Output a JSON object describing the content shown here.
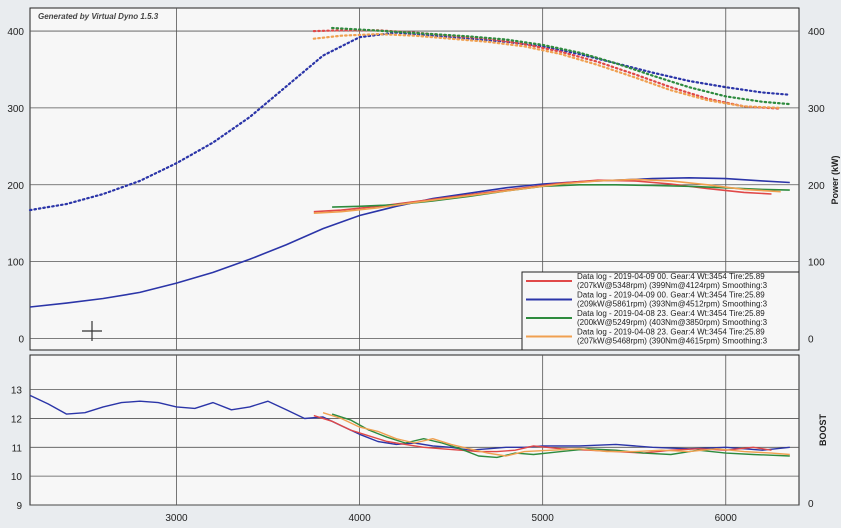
{
  "watermark": "Generated by Virtual Dyno 1.5.3",
  "colors": {
    "blue": "#2b35a8",
    "red": "#e04848",
    "green": "#2e8b3e",
    "orange": "#f0a050"
  },
  "chart_data": [
    {
      "type": "line",
      "xlim": [
        2200,
        6400
      ],
      "ylim": [
        -15,
        430
      ],
      "grid": true,
      "ylabel": "",
      "ylabel_right": "Power (kW)",
      "yticks_left": [
        "0",
        "100",
        "200",
        "300",
        "400"
      ],
      "yticks_right": [
        "0",
        "100",
        "200",
        "300",
        "400"
      ],
      "legend_position": "bottom-right",
      "legend": [
        {
          "line1": "Data log - 2019-04-09 00. Gear:4 Wt:3454 Tire:25.89",
          "line2": "(207kW@5348rpm) (399Nm@4124rpm) Smoothing:3",
          "color": "red"
        },
        {
          "line1": "Data log - 2019-04-09 00. Gear:4 Wt:3454 Tire:25.89",
          "line2": "(209kW@5861rpm) (393Nm@4512rpm) Smoothing:3",
          "color": "blue"
        },
        {
          "line1": "Data log - 2019-04-08 23. Gear:4 Wt:3454 Tire:25.89",
          "line2": "(200kW@5249rpm) (403Nm@3850rpm) Smoothing:3",
          "color": "green"
        },
        {
          "line1": "Data log - 2019-04-08 23. Gear:4 Wt:3454 Tire:25.89",
          "line2": "(207kW@5468rpm) (390Nm@4615rpm) Smoothing:3",
          "color": "orange"
        }
      ],
      "series": [
        {
          "color": "blue",
          "style": "solid",
          "x": [
            2200,
            2400,
            2600,
            2800,
            3000,
            3200,
            3400,
            3600,
            3800,
            4000,
            4200,
            4400,
            4600,
            4800,
            5000,
            5200,
            5400,
            5600,
            5800,
            6000,
            6200,
            6350
          ],
          "y": [
            41,
            46,
            52,
            60,
            72,
            86,
            103,
            122,
            143,
            160,
            172,
            182,
            189,
            196,
            201,
            204,
            206,
            208,
            209,
            208,
            205,
            203
          ]
        },
        {
          "color": "red",
          "style": "solid",
          "x": [
            3750,
            3900,
            4100,
            4300,
            4500,
            4700,
            4900,
            5100,
            5300,
            5500,
            5700,
            5900,
            6100,
            6250
          ],
          "y": [
            165,
            167,
            172,
            178,
            184,
            190,
            196,
            202,
            206,
            205,
            201,
            195,
            190,
            188
          ]
        },
        {
          "color": "green",
          "style": "solid",
          "x": [
            3850,
            4000,
            4200,
            4400,
            4600,
            4800,
            5000,
            5200,
            5400,
            5600,
            5800,
            6000,
            6200,
            6350
          ],
          "y": [
            171,
            172,
            174,
            179,
            185,
            192,
            198,
            200,
            200,
            199,
            198,
            196,
            194,
            193
          ]
        },
        {
          "color": "orange",
          "style": "solid",
          "x": [
            3750,
            3900,
            4100,
            4300,
            4500,
            4700,
            4900,
            5100,
            5300,
            5500,
            5700,
            5900,
            6100,
            6300
          ],
          "y": [
            163,
            165,
            170,
            177,
            183,
            189,
            195,
            201,
            205,
            207,
            205,
            200,
            194,
            191
          ]
        },
        {
          "color": "blue",
          "style": "dotted",
          "x": [
            2200,
            2400,
            2600,
            2800,
            3000,
            3200,
            3400,
            3600,
            3800,
            4000,
            4200,
            4400,
            4600,
            4800,
            5000,
            5200,
            5400,
            5600,
            5800,
            6000,
            6200,
            6350
          ],
          "y": [
            167,
            175,
            188,
            205,
            228,
            255,
            288,
            328,
            368,
            392,
            398,
            394,
            390,
            386,
            380,
            370,
            358,
            346,
            335,
            327,
            320,
            317
          ]
        },
        {
          "color": "red",
          "style": "dotted",
          "x": [
            3750,
            3900,
            4100,
            4300,
            4500,
            4700,
            4900,
            5100,
            5300,
            5500,
            5700,
            5900,
            6100,
            6300
          ],
          "y": [
            400,
            401,
            401,
            398,
            394,
            390,
            383,
            373,
            360,
            344,
            327,
            312,
            302,
            299
          ]
        },
        {
          "color": "green",
          "style": "dotted",
          "x": [
            3850,
            4000,
            4200,
            4400,
            4600,
            4800,
            5000,
            5200,
            5400,
            5600,
            5800,
            6000,
            6200,
            6350
          ],
          "y": [
            404,
            402,
            399,
            396,
            393,
            389,
            382,
            372,
            358,
            342,
            327,
            315,
            308,
            305
          ]
        },
        {
          "color": "orange",
          "style": "dotted",
          "x": [
            3750,
            3900,
            4100,
            4300,
            4500,
            4700,
            4900,
            5100,
            5300,
            5500,
            5700,
            5900,
            6100,
            6300
          ],
          "y": [
            390,
            394,
            396,
            394,
            390,
            386,
            380,
            370,
            356,
            340,
            323,
            310,
            302,
            300
          ]
        }
      ]
    },
    {
      "type": "line",
      "xlim": [
        2200,
        6400
      ],
      "ylim": [
        9,
        14.2
      ],
      "grid": true,
      "ylabel_left": "",
      "ylabel_right": "BOOST",
      "yticks_left": [
        "9",
        "10",
        "11",
        "12",
        "13"
      ],
      "yticks_right": [
        "0"
      ],
      "xticks": [
        "3000",
        "4000",
        "5000",
        "6000"
      ],
      "series": [
        {
          "color": "blue",
          "style": "solid",
          "x": [
            2200,
            2300,
            2400,
            2500,
            2600,
            2700,
            2800,
            2900,
            3000,
            3100,
            3200,
            3300,
            3400,
            3500,
            3600,
            3700,
            3800,
            3900,
            4000,
            4100,
            4200,
            4300,
            4400,
            4500,
            4600,
            4700,
            4800,
            4900,
            5000,
            5200,
            5400,
            5600,
            5800,
            6000,
            6200,
            6350
          ],
          "y": [
            12.8,
            12.5,
            12.15,
            12.2,
            12.4,
            12.55,
            12.6,
            12.55,
            12.4,
            12.35,
            12.55,
            12.3,
            12.4,
            12.6,
            12.3,
            12.0,
            12.05,
            11.75,
            11.45,
            11.2,
            11.1,
            11.15,
            11.05,
            11.0,
            10.9,
            10.95,
            11.0,
            11.0,
            11.05,
            11.05,
            11.1,
            11.0,
            10.95,
            11.0,
            10.9,
            11.0
          ]
        },
        {
          "color": "red",
          "style": "solid",
          "x": [
            3750,
            3850,
            3950,
            4050,
            4150,
            4250,
            4350,
            4450,
            4550,
            4650,
            4750,
            4850,
            4950,
            5100,
            5250,
            5400,
            5550,
            5700,
            5850,
            6000,
            6150,
            6250
          ],
          "y": [
            12.1,
            11.9,
            11.6,
            11.4,
            11.2,
            11.1,
            11.0,
            10.95,
            10.9,
            10.85,
            10.85,
            10.9,
            11.05,
            10.95,
            10.9,
            10.85,
            10.8,
            10.9,
            10.95,
            10.9,
            11.0,
            10.9
          ]
        },
        {
          "color": "green",
          "style": "solid",
          "x": [
            3850,
            3950,
            4050,
            4150,
            4250,
            4350,
            4450,
            4550,
            4650,
            4750,
            4850,
            4950,
            5100,
            5250,
            5400,
            5550,
            5700,
            5850,
            6000,
            6150,
            6350
          ],
          "y": [
            12.15,
            11.95,
            11.6,
            11.35,
            11.15,
            11.3,
            11.15,
            10.95,
            10.7,
            10.65,
            10.8,
            10.75,
            10.85,
            10.95,
            10.9,
            10.8,
            10.75,
            10.9,
            10.8,
            10.75,
            10.7
          ]
        },
        {
          "color": "orange",
          "style": "solid",
          "x": [
            3800,
            3900,
            4000,
            4100,
            4200,
            4300,
            4400,
            4500,
            4600,
            4700,
            4800,
            4900,
            5050,
            5200,
            5350,
            5500,
            5650,
            5800,
            5950,
            6100,
            6250,
            6350
          ],
          "y": [
            12.2,
            12.0,
            11.7,
            11.55,
            11.3,
            11.15,
            11.3,
            11.1,
            10.95,
            10.8,
            10.7,
            10.85,
            10.9,
            10.95,
            10.85,
            10.85,
            10.9,
            10.85,
            10.95,
            10.85,
            10.8,
            10.75
          ]
        }
      ]
    }
  ]
}
